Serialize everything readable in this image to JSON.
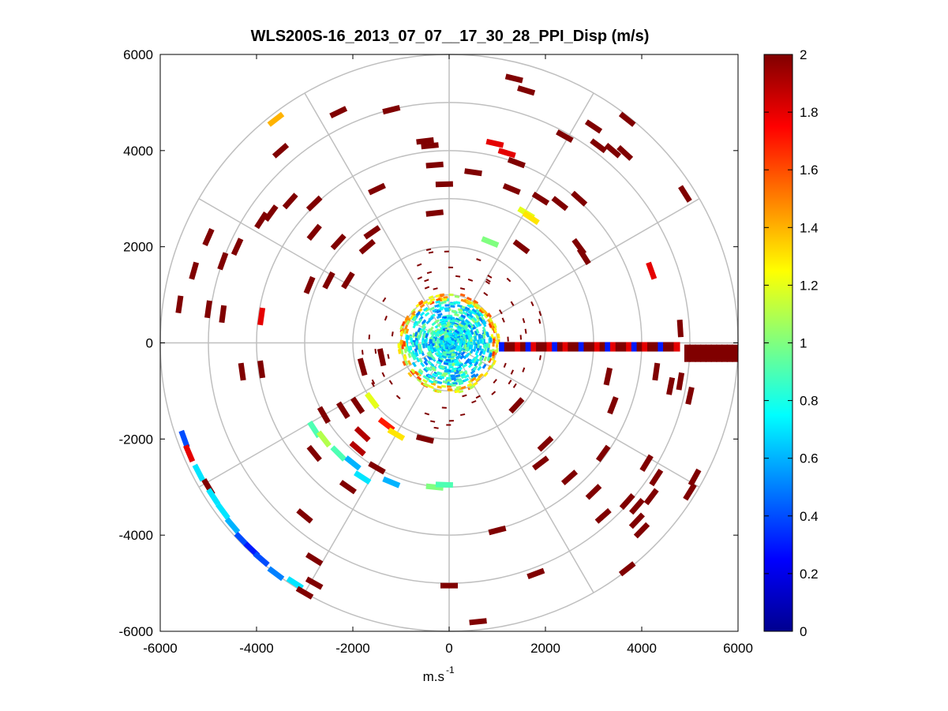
{
  "chart_data": {
    "type": "polar-scatter",
    "title": "WLS200S-16_2013_07_07__17_30_28_PPI_Disp (m/s)",
    "xlabel": "m.s",
    "xlabel_sup": "-1",
    "ylabel": "",
    "xlim": [
      -6000,
      6000
    ],
    "ylim": [
      -6000,
      6000
    ],
    "xticks": [
      -6000,
      -4000,
      -2000,
      0,
      2000,
      4000,
      6000
    ],
    "yticks": [
      6000,
      4000,
      2000,
      0,
      -2000,
      -4000,
      -6000
    ],
    "xtick_labels": [
      "-6000",
      "-4000",
      "-2000",
      "0",
      "2000",
      "4000",
      "6000"
    ],
    "ytick_labels": [
      "6000",
      "4000",
      "2000",
      "0",
      "-2000",
      "-4000",
      "-6000"
    ],
    "range_rings": [
      1000,
      2000,
      3000,
      4000,
      5000,
      6000
    ],
    "radial_angles_deg": [
      0,
      30,
      60,
      90,
      120,
      150,
      180,
      210,
      240,
      270,
      300,
      330
    ],
    "colorbar": {
      "min": 0,
      "max": 2,
      "ticks": [
        0,
        0.2,
        0.4,
        0.6,
        0.8,
        1,
        1.2,
        1.4,
        1.6,
        1.8,
        2
      ],
      "tick_labels": [
        "0",
        "0.2",
        "0.4",
        "0.6",
        "0.8",
        "1",
        "1.2",
        "1.4",
        "1.6",
        "1.8",
        "2"
      ],
      "colormap": "jet"
    },
    "series": [
      {
        "name": "dispersion_cells",
        "points": [
          {
            "x": 1350,
            "y": 5500,
            "v": 2.0
          },
          {
            "x": 1600,
            "y": 5250,
            "v": 2.0
          },
          {
            "x": -2300,
            "y": 4800,
            "v": 2.0
          },
          {
            "x": -3600,
            "y": 4650,
            "v": 1.4
          },
          {
            "x": -1200,
            "y": 4850,
            "v": 2.0
          },
          {
            "x": -500,
            "y": 4200,
            "v": 2.0
          },
          {
            "x": -3500,
            "y": 4000,
            "v": 2.0
          },
          {
            "x": -400,
            "y": 4100,
            "v": 2.0
          },
          {
            "x": 950,
            "y": 4150,
            "v": 1.8
          },
          {
            "x": 1200,
            "y": 3950,
            "v": 1.8
          },
          {
            "x": 2400,
            "y": 4300,
            "v": 2.0
          },
          {
            "x": 3000,
            "y": 4500,
            "v": 2.0
          },
          {
            "x": 3700,
            "y": 4650,
            "v": 2.0
          },
          {
            "x": 3100,
            "y": 4100,
            "v": 2.0
          },
          {
            "x": 3400,
            "y": 4000,
            "v": 2.0
          },
          {
            "x": 3650,
            "y": 3950,
            "v": 2.0
          },
          {
            "x": 1400,
            "y": 3750,
            "v": 2.0
          },
          {
            "x": -300,
            "y": 3700,
            "v": 2.0
          },
          {
            "x": 500,
            "y": 3550,
            "v": 2.0
          },
          {
            "x": -100,
            "y": 3300,
            "v": 2.0
          },
          {
            "x": -1500,
            "y": 3200,
            "v": 2.0
          },
          {
            "x": -2800,
            "y": 2900,
            "v": 2.0
          },
          {
            "x": -3700,
            "y": 2700,
            "v": 2.0
          },
          {
            "x": -3900,
            "y": 2550,
            "v": 2.0
          },
          {
            "x": -3300,
            "y": 2950,
            "v": 2.0
          },
          {
            "x": -300,
            "y": 2700,
            "v": 2.0
          },
          {
            "x": 1300,
            "y": 3200,
            "v": 2.0
          },
          {
            "x": 1900,
            "y": 3000,
            "v": 2.0
          },
          {
            "x": 2300,
            "y": 2900,
            "v": 2.0
          },
          {
            "x": 2700,
            "y": 3000,
            "v": 2.0
          },
          {
            "x": 4900,
            "y": 3100,
            "v": 2.0
          },
          {
            "x": 1600,
            "y": 2700,
            "v": 1.2
          },
          {
            "x": 1700,
            "y": 2600,
            "v": 1.3
          },
          {
            "x": 1500,
            "y": 2000,
            "v": 2.0
          },
          {
            "x": 850,
            "y": 2100,
            "v": 1.0
          },
          {
            "x": -1600,
            "y": 2300,
            "v": 2.0
          },
          {
            "x": -2300,
            "y": 2100,
            "v": 2.0
          },
          {
            "x": -2800,
            "y": 2300,
            "v": 2.0
          },
          {
            "x": -5000,
            "y": 2200,
            "v": 2.0
          },
          {
            "x": -4400,
            "y": 2000,
            "v": 2.0
          },
          {
            "x": -1700,
            "y": 2000,
            "v": 2.0
          },
          {
            "x": 2700,
            "y": 2000,
            "v": 2.0
          },
          {
            "x": 2800,
            "y": 1800,
            "v": 2.0
          },
          {
            "x": 4200,
            "y": 1500,
            "v": 1.8
          },
          {
            "x": -5300,
            "y": 1500,
            "v": 2.0
          },
          {
            "x": -4700,
            "y": 1700,
            "v": 2.0
          },
          {
            "x": -2900,
            "y": 1200,
            "v": 2.0
          },
          {
            "x": -2500,
            "y": 1300,
            "v": 2.0
          },
          {
            "x": -2100,
            "y": 1300,
            "v": 2.0
          },
          {
            "x": -5600,
            "y": 800,
            "v": 2.0
          },
          {
            "x": -5000,
            "y": 700,
            "v": 2.0
          },
          {
            "x": -4700,
            "y": 600,
            "v": 2.0
          },
          {
            "x": -3900,
            "y": 550,
            "v": 1.8
          },
          {
            "x": 4800,
            "y": 300,
            "v": 2.0
          },
          {
            "x": -4300,
            "y": -600,
            "v": 2.0
          },
          {
            "x": -3900,
            "y": -550,
            "v": 2.0
          },
          {
            "x": -1400,
            "y": -300,
            "v": 2.0
          },
          {
            "x": 4300,
            "y": -600,
            "v": 2.0
          },
          {
            "x": 4600,
            "y": -900,
            "v": 2.0
          },
          {
            "x": 4800,
            "y": -800,
            "v": 2.0
          },
          {
            "x": 3300,
            "y": -700,
            "v": 2.0
          },
          {
            "x": 3400,
            "y": -1300,
            "v": 2.0
          },
          {
            "x": 5000,
            "y": -1100,
            "v": 2.0
          },
          {
            "x": -2800,
            "y": -1800,
            "v": 0.9
          },
          {
            "x": -2600,
            "y": -2000,
            "v": 1.1
          },
          {
            "x": -2300,
            "y": -2300,
            "v": 0.9
          },
          {
            "x": -2000,
            "y": -2500,
            "v": 0.6
          },
          {
            "x": -1800,
            "y": -2800,
            "v": 0.7
          },
          {
            "x": -1200,
            "y": -2900,
            "v": 0.6
          },
          {
            "x": -1500,
            "y": -2600,
            "v": 2.0
          },
          {
            "x": -2800,
            "y": -2300,
            "v": 2.0
          },
          {
            "x": -1800,
            "y": -1900,
            "v": 1.9
          },
          {
            "x": -1300,
            "y": -1700,
            "v": 1.7
          },
          {
            "x": -1100,
            "y": -1900,
            "v": 1.3
          },
          {
            "x": -2600,
            "y": -1500,
            "v": 2.0
          },
          {
            "x": -2200,
            "y": -1400,
            "v": 2.0
          },
          {
            "x": -1900,
            "y": -1300,
            "v": 2.0
          },
          {
            "x": -1600,
            "y": -1200,
            "v": 1.2
          },
          {
            "x": -300,
            "y": -3000,
            "v": 1.0
          },
          {
            "x": -100,
            "y": -2950,
            "v": 0.9
          },
          {
            "x": -5500,
            "y": -2000,
            "v": 0.4
          },
          {
            "x": -5400,
            "y": -2300,
            "v": 1.8
          },
          {
            "x": -5200,
            "y": -2700,
            "v": 0.7
          },
          {
            "x": -5000,
            "y": -3000,
            "v": 2.0
          },
          {
            "x": -4900,
            "y": -3200,
            "v": 0.7
          },
          {
            "x": -4700,
            "y": -3500,
            "v": 0.7
          },
          {
            "x": -4500,
            "y": -3800,
            "v": 0.6
          },
          {
            "x": -4300,
            "y": -4100,
            "v": 0.4
          },
          {
            "x": -4100,
            "y": -4300,
            "v": 0.3
          },
          {
            "x": -3900,
            "y": -4500,
            "v": 0.4
          },
          {
            "x": -3600,
            "y": -4800,
            "v": 0.5
          },
          {
            "x": -3200,
            "y": -5000,
            "v": 0.7
          },
          {
            "x": -2800,
            "y": -5000,
            "v": 2.0
          },
          {
            "x": -3000,
            "y": -5200,
            "v": 2.0
          },
          {
            "x": -3000,
            "y": -3600,
            "v": 2.0
          },
          {
            "x": -2800,
            "y": -4500,
            "v": 2.0
          },
          {
            "x": 2000,
            "y": -2100,
            "v": 2.0
          },
          {
            "x": 1900,
            "y": -2500,
            "v": 2.0
          },
          {
            "x": 2500,
            "y": -2800,
            "v": 2.0
          },
          {
            "x": 3200,
            "y": -2300,
            "v": 2.0
          },
          {
            "x": 4100,
            "y": -2500,
            "v": 2.0
          },
          {
            "x": 4300,
            "y": -2800,
            "v": 2.0
          },
          {
            "x": 5100,
            "y": -2800,
            "v": 2.0
          },
          {
            "x": 5000,
            "y": -3100,
            "v": 2.0
          },
          {
            "x": 3000,
            "y": -3100,
            "v": 2.0
          },
          {
            "x": 4200,
            "y": -3200,
            "v": 2.0
          },
          {
            "x": 3700,
            "y": -3300,
            "v": 2.0
          },
          {
            "x": 3900,
            "y": -3400,
            "v": 2.0
          },
          {
            "x": 3900,
            "y": -3700,
            "v": 2.0
          },
          {
            "x": 3200,
            "y": -3600,
            "v": 2.0
          },
          {
            "x": 4000,
            "y": -3900,
            "v": 2.0
          },
          {
            "x": 1000,
            "y": -3900,
            "v": 2.0
          },
          {
            "x": 3700,
            "y": -4700,
            "v": 2.0
          },
          {
            "x": 1800,
            "y": -4800,
            "v": 2.0
          },
          {
            "x": 0,
            "y": -5050,
            "v": 2.0
          },
          {
            "x": 600,
            "y": -5800,
            "v": 2.0
          },
          {
            "x": -1800,
            "y": -500,
            "v": 2.0
          },
          {
            "x": -1900,
            "y": -2200,
            "v": 1.9
          },
          {
            "x": -500,
            "y": -2000,
            "v": 2.0
          },
          {
            "x": 1400,
            "y": -1300,
            "v": 2.0
          },
          {
            "x": -2100,
            "y": -3000,
            "v": 2.0
          }
        ]
      }
    ]
  }
}
